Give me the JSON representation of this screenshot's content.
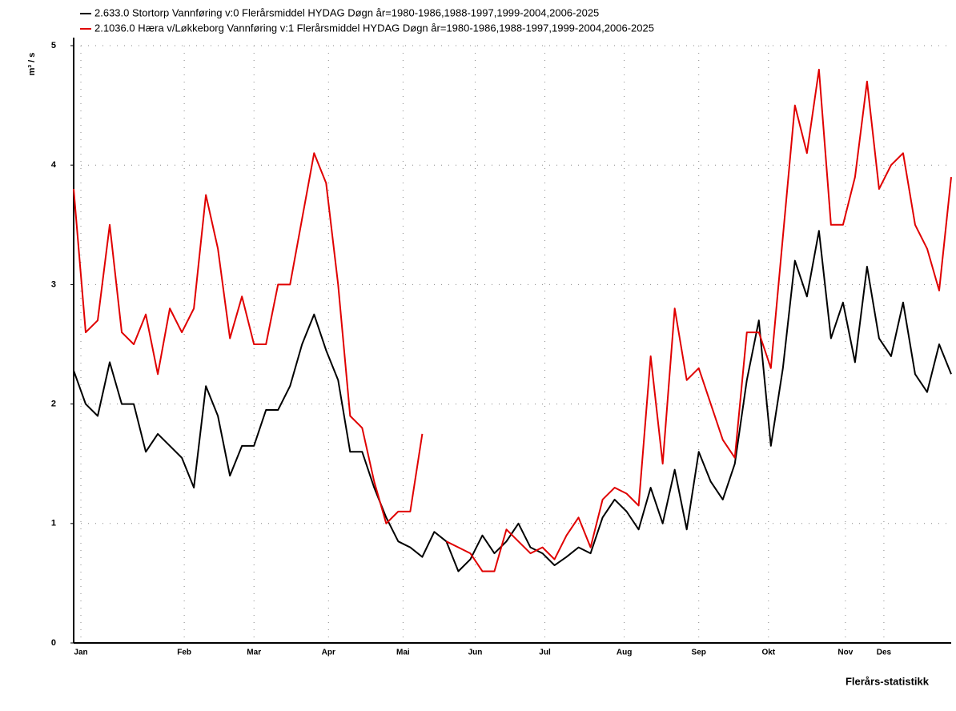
{
  "chart_data": {
    "type": "line",
    "ylabel": "m³ / s",
    "footer": "Flerårs-statistikk",
    "x": [
      0,
      5,
      10,
      15,
      20,
      25,
      30,
      35,
      40,
      45,
      50,
      55,
      60,
      65,
      70,
      75,
      80,
      85,
      90,
      95,
      100,
      105,
      110,
      115,
      120,
      125,
      130,
      135,
      140,
      145,
      150,
      155,
      160,
      165,
      170,
      175,
      180,
      185,
      190,
      195,
      200,
      205,
      210,
      215,
      220,
      225,
      230,
      235,
      240,
      245,
      250,
      255,
      260,
      265,
      270,
      275,
      280,
      285,
      290,
      295,
      300,
      305,
      310,
      315,
      320,
      325,
      330,
      335,
      340,
      345,
      350,
      355,
      360,
      365
    ],
    "series": [
      {
        "name": "2.633.0 Stortorp Vannføring v:0 Flerårsmiddel HYDAG Døgn år=1980-1986,1988-1997,1999-2004,2006-2025",
        "color": "#000000",
        "values": [
          2.28,
          2.0,
          1.9,
          2.35,
          2.0,
          2.0,
          1.6,
          1.75,
          1.65,
          1.55,
          1.3,
          2.15,
          1.9,
          1.4,
          1.65,
          1.65,
          1.95,
          1.95,
          2.15,
          2.5,
          2.75,
          2.45,
          2.2,
          1.6,
          1.6,
          1.3,
          1.05,
          0.85,
          0.8,
          0.72,
          0.93,
          0.85,
          0.6,
          0.7,
          0.9,
          0.75,
          0.85,
          1.0,
          0.8,
          0.75,
          0.65,
          0.72,
          0.8,
          0.75,
          1.05,
          1.2,
          1.1,
          0.95,
          1.3,
          1.0,
          1.45,
          0.95,
          1.6,
          1.35,
          1.2,
          1.5,
          2.2,
          2.7,
          1.65,
          2.3,
          3.2,
          2.9,
          3.45,
          2.55,
          2.85,
          2.35,
          3.15,
          2.55,
          2.4,
          2.85,
          2.25,
          2.1,
          2.5,
          2.25
        ]
      },
      {
        "name": "2.1036.0 Hæra v/Løkkeborg Vannføring v:1 Flerårsmiddel HYDAG Døgn år=1980-1986,1988-1997,1999-2004,2006-2025",
        "color": "#e00000",
        "values": [
          3.8,
          2.6,
          2.7,
          3.5,
          2.6,
          2.5,
          2.75,
          2.25,
          2.8,
          2.6,
          2.8,
          3.75,
          3.3,
          2.55,
          2.9,
          2.5,
          2.5,
          3.0,
          3.0,
          3.55,
          4.1,
          3.85,
          3.0,
          1.9,
          1.8,
          1.35,
          1.0,
          1.1,
          1.1,
          1.75,
          null,
          0.85,
          0.8,
          0.75,
          0.6,
          0.6,
          0.95,
          0.85,
          0.75,
          0.8,
          0.7,
          0.9,
          1.05,
          0.8,
          1.2,
          1.3,
          1.25,
          1.15,
          2.4,
          1.5,
          2.8,
          2.2,
          2.3,
          2.0,
          1.7,
          1.55,
          2.6,
          2.6,
          2.3,
          3.4,
          4.5,
          4.1,
          4.8,
          3.5,
          3.5,
          3.9,
          4.7,
          3.8,
          4.0,
          4.1,
          3.5,
          3.3,
          2.95,
          3.9
        ]
      }
    ],
    "xlim": [
      0,
      365
    ],
    "xticks": [
      {
        "value": 3,
        "label": "Jan"
      },
      {
        "value": 46,
        "label": "Feb"
      },
      {
        "value": 75,
        "label": "Mar"
      },
      {
        "value": 106,
        "label": "Apr"
      },
      {
        "value": 137,
        "label": "Mai"
      },
      {
        "value": 167,
        "label": "Jun"
      },
      {
        "value": 196,
        "label": "Jul"
      },
      {
        "value": 229,
        "label": "Aug"
      },
      {
        "value": 260,
        "label": "Sep"
      },
      {
        "value": 289,
        "label": "Okt"
      },
      {
        "value": 321,
        "label": "Nov"
      },
      {
        "value": 337,
        "label": "Des"
      }
    ],
    "ylim": [
      0,
      5
    ],
    "yticks": [
      0,
      1,
      2,
      3,
      4,
      5
    ],
    "grid": true
  }
}
